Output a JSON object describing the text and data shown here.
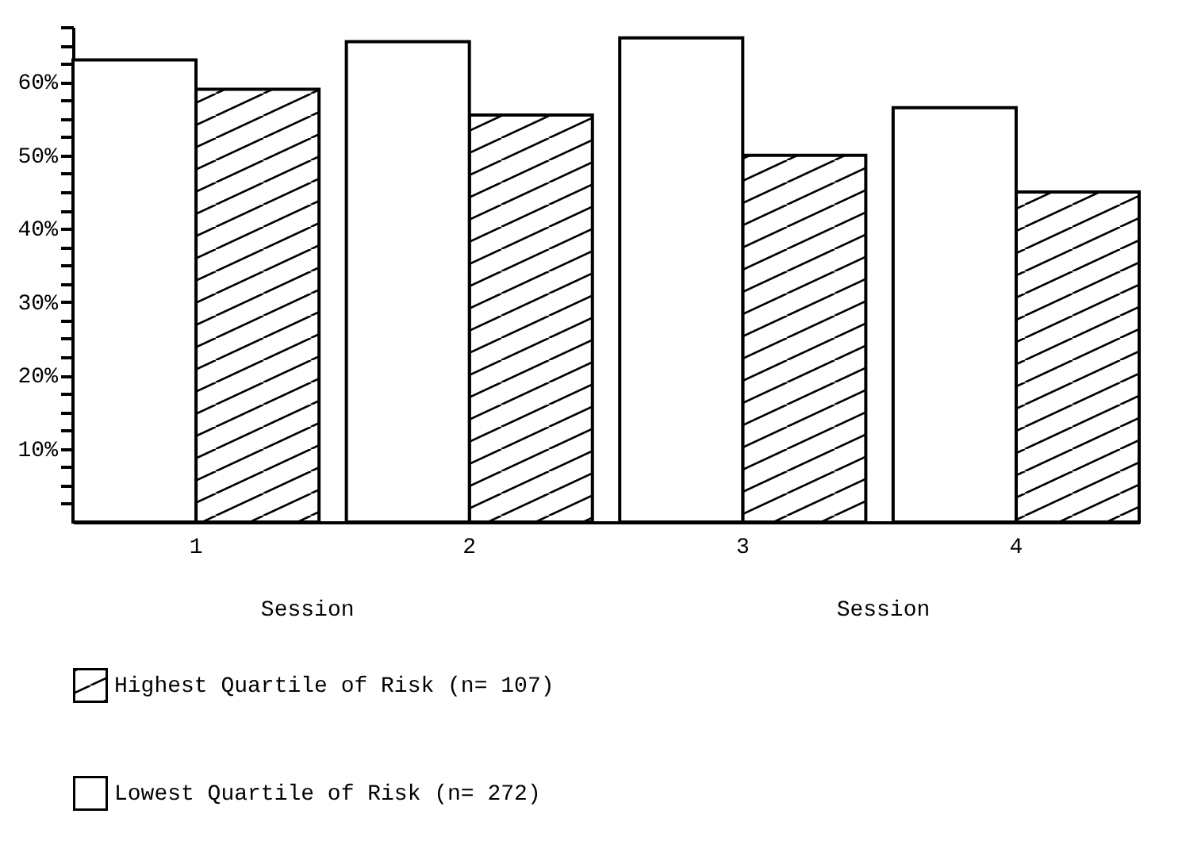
{
  "chart_data": {
    "type": "bar",
    "xlabel": "Session",
    "categories": [
      "1",
      "2",
      "3",
      "4"
    ],
    "series": [
      {
        "name": "Highest Quartile of Risk (n= 107)",
        "color": "#000000",
        "values": [
          59,
          55.5,
          50,
          45
        ]
      },
      {
        "name": "Lowest Quartile of Risk (n= 272)",
        "color": "#ffffff",
        "values": [
          63,
          65.5,
          66,
          56.5
        ]
      }
    ],
    "ylim": [
      0,
      67.5
    ],
    "yticks": [
      {
        "value": 2.5,
        "label": null
      },
      {
        "value": 5,
        "label": null
      },
      {
        "value": 7.5,
        "label": null
      },
      {
        "value": 10,
        "label": "10%"
      },
      {
        "value": 12.5,
        "label": null
      },
      {
        "value": 15,
        "label": null
      },
      {
        "value": 17.5,
        "label": null
      },
      {
        "value": 20,
        "label": "20%"
      },
      {
        "value": 22.5,
        "label": null
      },
      {
        "value": 25,
        "label": null
      },
      {
        "value": 27.5,
        "label": null
      },
      {
        "value": 30,
        "label": "30%"
      },
      {
        "value": 32.5,
        "label": null
      },
      {
        "value": 35,
        "label": null
      },
      {
        "value": 37.5,
        "label": null
      },
      {
        "value": 40,
        "label": "40%"
      },
      {
        "value": 42.5,
        "label": null
      },
      {
        "value": 45,
        "label": null
      },
      {
        "value": 47.5,
        "label": null
      },
      {
        "value": 50,
        "label": "50%"
      },
      {
        "value": 52.5,
        "label": null
      },
      {
        "value": 55,
        "label": null
      },
      {
        "value": 57.5,
        "label": null
      },
      {
        "value": 60,
        "label": "60%"
      },
      {
        "value": 62.5,
        "label": null
      },
      {
        "value": 65,
        "label": null
      },
      {
        "value": 67.5,
        "label": null
      }
    ],
    "annotations": [
      "Session"
    ],
    "grid": false,
    "legend": "bottom"
  }
}
